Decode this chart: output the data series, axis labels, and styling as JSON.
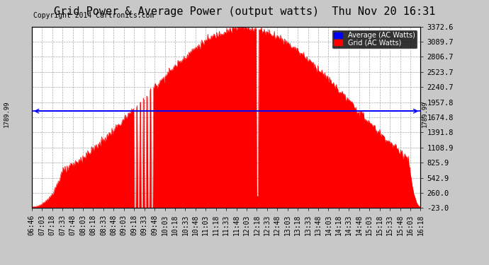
{
  "title": "Grid Power & Average Power (output watts)  Thu Nov 20 16:31",
  "copyright": "Copyright 2014 Cartronics.com",
  "yticks_right": [
    3372.6,
    3089.7,
    2806.7,
    2523.7,
    2240.7,
    1957.8,
    1674.8,
    1391.8,
    1108.9,
    825.9,
    542.9,
    260.0,
    -23.0
  ],
  "ymin": -23.0,
  "ymax": 3372.6,
  "average_line_y": 1789.99,
  "average_label": "1789.99",
  "background_color": "#c8c8c8",
  "plot_bg_color": "#ffffff",
  "fill_color": "#ff0000",
  "line_color": "#ff0000",
  "avg_line_color": "#0000ff",
  "legend_avg_color": "#0000ff",
  "legend_grid_color": "#ff0000",
  "title_fontsize": 11,
  "copyright_fontsize": 7,
  "tick_fontsize": 7.5,
  "grid_color": "#aaaaaa",
  "xtick_labels": [
    "06:46",
    "07:03",
    "07:18",
    "07:33",
    "07:48",
    "08:03",
    "08:18",
    "08:33",
    "08:48",
    "09:03",
    "09:18",
    "09:33",
    "09:48",
    "10:03",
    "10:18",
    "10:33",
    "10:48",
    "11:03",
    "11:18",
    "11:33",
    "11:48",
    "12:03",
    "12:18",
    "12:33",
    "12:48",
    "13:03",
    "13:18",
    "13:33",
    "13:48",
    "14:03",
    "14:18",
    "14:33",
    "14:48",
    "15:03",
    "15:18",
    "15:33",
    "15:48",
    "16:03",
    "16:18"
  ]
}
